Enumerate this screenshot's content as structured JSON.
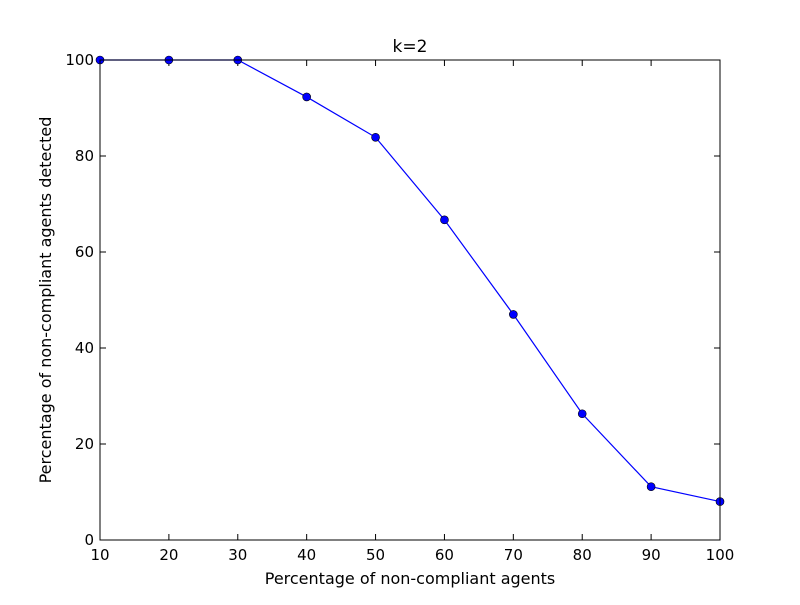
{
  "chart_data": {
    "type": "line",
    "title": "k=2",
    "xlabel": "Percentage of non-compliant agents",
    "ylabel": "Percentage of non-compliant agents detected",
    "xlim": [
      10,
      100
    ],
    "ylim": [
      0,
      100
    ],
    "xticks": [
      10,
      20,
      30,
      40,
      50,
      60,
      70,
      80,
      90,
      100
    ],
    "yticks": [
      0,
      20,
      40,
      60,
      80,
      100
    ],
    "grid": false,
    "legend": "none",
    "series": [
      {
        "x": [
          10,
          20,
          30,
          40,
          50,
          60,
          70,
          80,
          90,
          100
        ],
        "y": [
          100,
          100,
          100,
          92.3,
          83.9,
          66.7,
          47,
          26.3,
          11.1,
          8
        ],
        "color": "#0000ff",
        "marker": "circle"
      }
    ]
  }
}
